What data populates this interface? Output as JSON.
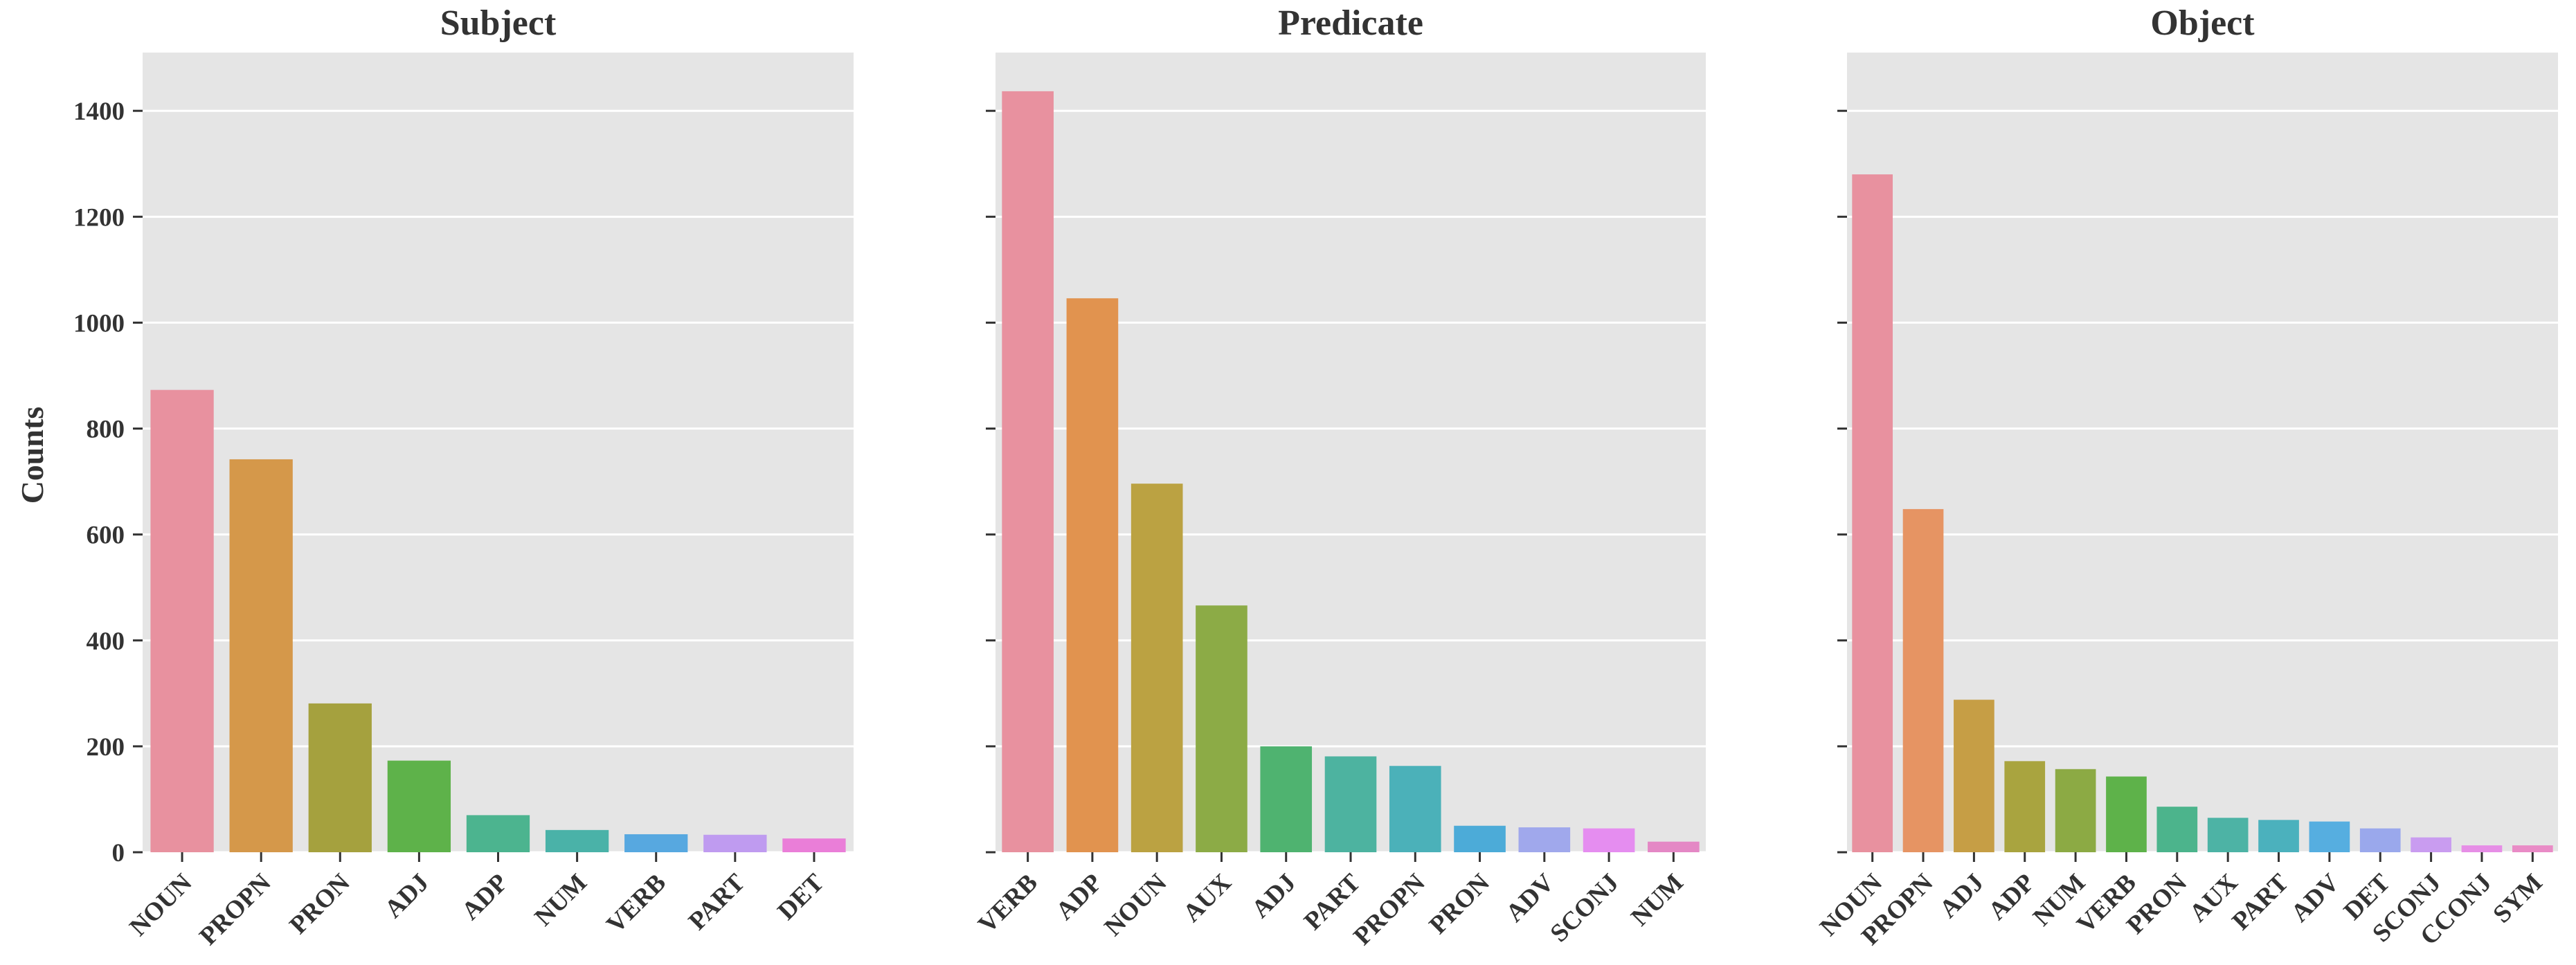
{
  "figure": {
    "ylabel": "Counts"
  },
  "chart_data": [
    {
      "type": "bar",
      "title": "Subject",
      "xlabel": "",
      "ylabel": "Counts",
      "ylim": [
        0,
        1510
      ],
      "yticks": [
        0,
        200,
        400,
        600,
        800,
        1000,
        1200,
        1400
      ],
      "grid": true,
      "categories": [
        "NOUN",
        "PROPN",
        "PRON",
        "ADJ",
        "ADP",
        "NUM",
        "VERB",
        "PART",
        "DET"
      ],
      "values": [
        873,
        742,
        281,
        173,
        70,
        42,
        34,
        33,
        26
      ],
      "colors": [
        "#e8919f",
        "#d5984a",
        "#a5a13e",
        "#5eb24a",
        "#4cb48f",
        "#4ab2a8",
        "#57a8e0",
        "#bf9bf0",
        "#ea7ed8"
      ]
    },
    {
      "type": "bar",
      "title": "Predicate",
      "xlabel": "",
      "ylabel": "",
      "ylim": [
        0,
        1510
      ],
      "yticks": [
        0,
        200,
        400,
        600,
        800,
        1000,
        1200,
        1400
      ],
      "grid": true,
      "categories": [
        "VERB",
        "ADP",
        "NOUN",
        "AUX",
        "ADJ",
        "PART",
        "PROPN",
        "PRON",
        "ADV",
        "SCONJ",
        "NUM"
      ],
      "values": [
        1437,
        1046,
        696,
        466,
        200,
        181,
        163,
        50,
        47,
        45,
        20
      ],
      "colors": [
        "#e8919f",
        "#e1934f",
        "#bba242",
        "#8cab46",
        "#4fb370",
        "#4db3a0",
        "#4bb1b9",
        "#4cabd8",
        "#a0a8ec",
        "#e58df0",
        "#e488c5"
      ]
    },
    {
      "type": "bar",
      "title": "Object",
      "xlabel": "",
      "ylabel": "",
      "ylim": [
        0,
        1510
      ],
      "yticks": [
        0,
        200,
        400,
        600,
        800,
        1000,
        1200,
        1400
      ],
      "grid": true,
      "categories": [
        "NOUN",
        "PROPN",
        "ADJ",
        "ADP",
        "NUM",
        "VERB",
        "PRON",
        "AUX",
        "PART",
        "ADV",
        "DET",
        "SCONJ",
        "CCONJ",
        "SYM"
      ],
      "values": [
        1280,
        648,
        288,
        172,
        157,
        143,
        86,
        65,
        61,
        58,
        45,
        28,
        13,
        13
      ],
      "colors": [
        "#e8919f",
        "#e69463",
        "#c69e45",
        "#a9a43f",
        "#8caa44",
        "#5eb24a",
        "#4cb48c",
        "#4db3a5",
        "#4bb1bd",
        "#56aee0",
        "#9aa8ec",
        "#c99cf0",
        "#e68ee6",
        "#e98bc6"
      ]
    }
  ]
}
